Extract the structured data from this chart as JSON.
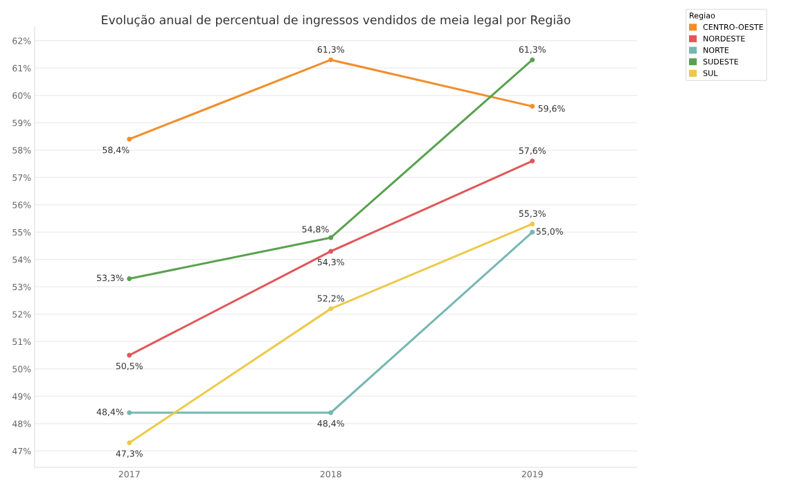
{
  "chart_data": {
    "type": "line",
    "title": "Evolução anual de percentual de ingressos vendidos de meia legal por Região",
    "legend_title": "Regiao",
    "categories": [
      "2017",
      "2018",
      "2019"
    ],
    "series": [
      {
        "name": "CENTRO-OESTE",
        "color": "#f28e2b",
        "values": [
          58.4,
          61.3,
          59.6
        ],
        "value_labels": [
          "58,4%",
          "61,3%",
          "59,6%"
        ]
      },
      {
        "name": "NORDESTE",
        "color": "#e15759",
        "values": [
          50.5,
          54.3,
          57.6
        ],
        "value_labels": [
          "50,5%",
          "54,3%",
          "57,6%"
        ]
      },
      {
        "name": "NORTE",
        "color": "#76b7b2",
        "values": [
          48.4,
          48.4,
          55.0
        ],
        "value_labels": [
          "48,4%",
          "48,4%",
          "55,0%"
        ]
      },
      {
        "name": "SUDESTE",
        "color": "#59a14f",
        "values": [
          53.3,
          54.8,
          61.3
        ],
        "value_labels": [
          "53,3%",
          "54,8%",
          "61,3%"
        ]
      },
      {
        "name": "SUL",
        "color": "#edc948",
        "values": [
          47.3,
          52.2,
          55.3
        ],
        "value_labels": [
          "47,3%",
          "52,2%",
          "55,3%"
        ]
      }
    ],
    "ylim": [
      46.4,
      62.5
    ],
    "yticks": [
      {
        "value": 47,
        "label": "47%"
      },
      {
        "value": 48,
        "label": "48%"
      },
      {
        "value": 49,
        "label": "49%"
      },
      {
        "value": 50,
        "label": "50%"
      },
      {
        "value": 51,
        "label": "51%"
      },
      {
        "value": 52,
        "label": "52%"
      },
      {
        "value": 53,
        "label": "53%"
      },
      {
        "value": 54,
        "label": "54%"
      },
      {
        "value": 55,
        "label": "55%"
      },
      {
        "value": 56,
        "label": "56%"
      },
      {
        "value": 57,
        "label": "57%"
      },
      {
        "value": 58,
        "label": "58%"
      },
      {
        "value": 59,
        "label": "59%"
      },
      {
        "value": 60,
        "label": "60%"
      },
      {
        "value": 61,
        "label": "61%"
      },
      {
        "value": 62,
        "label": "62%"
      }
    ],
    "grid": "y",
    "legend": "top right",
    "marker": "circle",
    "line_style": "solid"
  }
}
